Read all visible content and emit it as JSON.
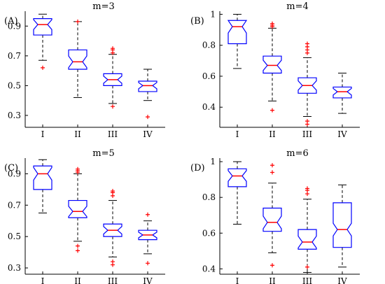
{
  "chart_data": [
    {
      "type": "boxplot",
      "panel": "(A)",
      "title": "m=3",
      "categories": [
        "I",
        "II",
        "III",
        "IV"
      ],
      "yticks": [
        "0.3",
        "0.5",
        "0.7",
        "0.9"
      ],
      "ylim": [
        0.22,
        1.0
      ],
      "notched": true,
      "boxes": [
        {
          "category": "I",
          "whisker_low": 0.67,
          "q1": 0.84,
          "median": 0.91,
          "q3": 0.95,
          "whisker_high": 0.98,
          "outliers": [
            0.62
          ]
        },
        {
          "category": "II",
          "whisker_low": 0.42,
          "q1": 0.61,
          "median": 0.66,
          "q3": 0.74,
          "whisker_high": 0.93,
          "outliers": [
            0.93
          ]
        },
        {
          "category": "III",
          "whisker_low": 0.38,
          "q1": 0.5,
          "median": 0.54,
          "q3": 0.58,
          "whisker_high": 0.71,
          "outliers": [
            0.36,
            0.72,
            0.74,
            0.75
          ]
        },
        {
          "category": "IV",
          "whisker_low": 0.4,
          "q1": 0.46,
          "median": 0.5,
          "q3": 0.53,
          "whisker_high": 0.61,
          "outliers": [
            0.29
          ]
        }
      ]
    },
    {
      "type": "boxplot",
      "panel": "(B)",
      "title": "m=4",
      "categories": [
        "I",
        "II",
        "III",
        "IV"
      ],
      "yticks": [
        "0.4",
        "0.6",
        "0.8",
        "1"
      ],
      "ylim": [
        0.27,
        1.02
      ],
      "notched": true,
      "boxes": [
        {
          "category": "I",
          "whisker_low": 0.65,
          "q1": 0.81,
          "median": 0.92,
          "q3": 0.96,
          "whisker_high": 1.0,
          "outliers": []
        },
        {
          "category": "II",
          "whisker_low": 0.44,
          "q1": 0.62,
          "median": 0.67,
          "q3": 0.73,
          "whisker_high": 0.91,
          "outliers": [
            0.38,
            0.92,
            0.93,
            0.94
          ]
        },
        {
          "category": "III",
          "whisker_low": 0.34,
          "q1": 0.49,
          "median": 0.54,
          "q3": 0.59,
          "whisker_high": 0.72,
          "outliers": [
            0.29,
            0.31,
            0.75,
            0.77,
            0.79,
            0.81
          ]
        },
        {
          "category": "IV",
          "whisker_low": 0.36,
          "q1": 0.46,
          "median": 0.5,
          "q3": 0.53,
          "whisker_high": 0.62,
          "outliers": []
        }
      ]
    },
    {
      "type": "boxplot",
      "panel": "(C)",
      "title": "m=5",
      "categories": [
        "I",
        "II",
        "III",
        "IV"
      ],
      "yticks": [
        "0.3",
        "0.5",
        "0.7",
        "0.9"
      ],
      "ylim": [
        0.26,
        1.0
      ],
      "notched": true,
      "boxes": [
        {
          "category": "I",
          "whisker_low": 0.65,
          "q1": 0.8,
          "median": 0.9,
          "q3": 0.95,
          "whisker_high": 0.99,
          "outliers": []
        },
        {
          "category": "II",
          "whisker_low": 0.47,
          "q1": 0.62,
          "median": 0.66,
          "q3": 0.73,
          "whisker_high": 0.9,
          "outliers": [
            0.41,
            0.44,
            0.91,
            0.92,
            0.93
          ]
        },
        {
          "category": "III",
          "whisker_low": 0.37,
          "q1": 0.5,
          "median": 0.54,
          "q3": 0.58,
          "whisker_high": 0.73,
          "outliers": [
            0.32,
            0.34,
            0.76,
            0.78,
            0.79
          ]
        },
        {
          "category": "IV",
          "whisker_low": 0.39,
          "q1": 0.48,
          "median": 0.51,
          "q3": 0.54,
          "whisker_high": 0.6,
          "outliers": [
            0.33,
            0.64
          ]
        }
      ]
    },
    {
      "type": "boxplot",
      "panel": "(D)",
      "title": "m=6",
      "categories": [
        "I",
        "II",
        "III",
        "IV"
      ],
      "yticks": [
        "0.4",
        "0.6",
        "0.8",
        "1"
      ],
      "ylim": [
        0.37,
        1.02
      ],
      "notched": true,
      "boxes": [
        {
          "category": "I",
          "whisker_low": 0.65,
          "q1": 0.86,
          "median": 0.92,
          "q3": 0.96,
          "whisker_high": 1.0,
          "outliers": []
        },
        {
          "category": "II",
          "whisker_low": 0.49,
          "q1": 0.61,
          "median": 0.66,
          "q3": 0.74,
          "whisker_high": 0.88,
          "outliers": [
            0.42,
            0.94,
            0.98
          ]
        },
        {
          "category": "III",
          "whisker_low": 0.38,
          "q1": 0.51,
          "median": 0.55,
          "q3": 0.62,
          "whisker_high": 0.79,
          "outliers": [
            0.41,
            0.82,
            0.84,
            0.85
          ]
        },
        {
          "category": "IV",
          "whisker_low": 0.41,
          "q1": 0.52,
          "median": 0.62,
          "q3": 0.77,
          "whisker_high": 0.87,
          "outliers": []
        }
      ]
    }
  ]
}
